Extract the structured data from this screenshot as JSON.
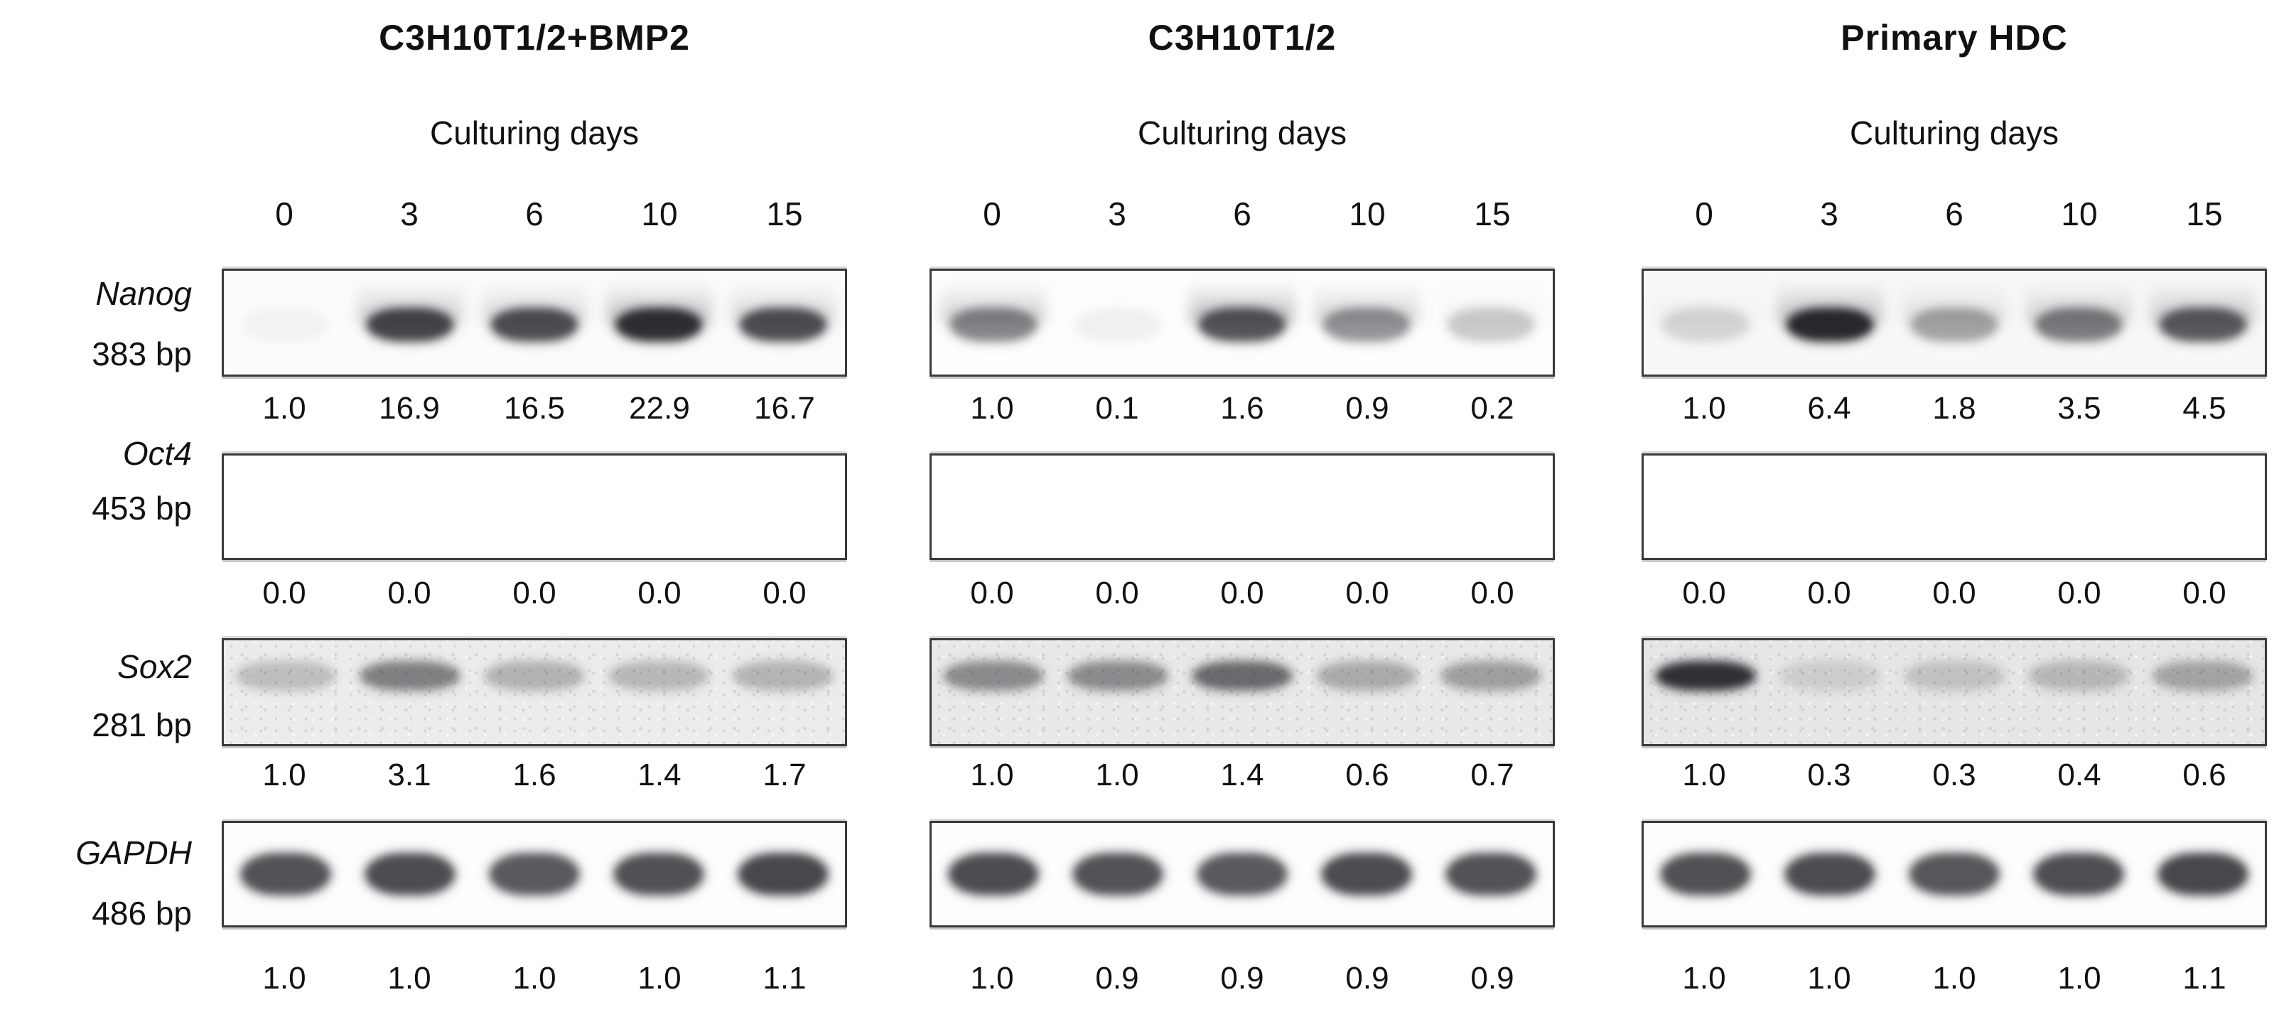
{
  "figure": {
    "culturing_days_label": "Culturing days",
    "lanes": [
      "0",
      "3",
      "6",
      "10",
      "15"
    ],
    "gene_rows": [
      {
        "gene": "Nanog",
        "size": "383 bp"
      },
      {
        "gene": "Oct4",
        "size": "453 bp"
      },
      {
        "gene": "Sox2",
        "size": "281 bp"
      },
      {
        "gene": "GAPDH",
        "size": "486 bp"
      }
    ],
    "band_color": "#1c1c22",
    "panels": [
      {
        "title": "C3H10T1/2+BMP2",
        "rows": [
          {
            "gene": "Nanog",
            "values": [
              "1.0",
              "16.9",
              "16.5",
              "22.9",
              "16.7"
            ],
            "bands": [
              0.04,
              0.82,
              0.78,
              0.92,
              0.78
            ],
            "smears": [
              0,
              0.28,
              0.22,
              0.35,
              0.22
            ],
            "texture": "plain",
            "tone": "#fbfbfb"
          },
          {
            "gene": "Oct4",
            "values": [
              "0.0",
              "0.0",
              "0.0",
              "0.0",
              "0.0"
            ],
            "bands": [
              0,
              0,
              0,
              0,
              0
            ],
            "smears": [
              0,
              0,
              0,
              0,
              0
            ],
            "texture": "plain",
            "tone": "#ffffff"
          },
          {
            "gene": "Sox2",
            "values": [
              "1.0",
              "3.1",
              "1.6",
              "1.4",
              "1.7"
            ],
            "bands": [
              0.22,
              0.52,
              0.28,
              0.25,
              0.27
            ],
            "smears": [
              0,
              0,
              0,
              0,
              0
            ],
            "texture": "speckled",
            "tone": "#ececec"
          },
          {
            "gene": "GAPDH",
            "values": [
              "1.0",
              "1.0",
              "1.0",
              "1.0",
              "1.1"
            ],
            "bands": [
              0.76,
              0.79,
              0.73,
              0.77,
              0.81
            ],
            "smears": [
              0,
              0,
              0,
              0,
              0
            ],
            "texture": "plain",
            "tone": "#fdfdfd"
          }
        ]
      },
      {
        "title": "C3H10T1/2",
        "rows": [
          {
            "gene": "Nanog",
            "values": [
              "1.0",
              "0.1",
              "1.6",
              "0.9",
              "0.2"
            ],
            "bands": [
              0.52,
              0.06,
              0.74,
              0.46,
              0.22
            ],
            "smears": [
              0.28,
              0,
              0.4,
              0.25,
              0.05
            ],
            "texture": "plain",
            "tone": "#fdfdfd"
          },
          {
            "gene": "Oct4",
            "values": [
              "0.0",
              "0.0",
              "0.0",
              "0.0",
              "0.0"
            ],
            "bands": [
              0,
              0,
              0,
              0,
              0
            ],
            "smears": [
              0,
              0,
              0,
              0,
              0
            ],
            "texture": "plain",
            "tone": "#ffffff"
          },
          {
            "gene": "Sox2",
            "values": [
              "1.0",
              "1.0",
              "1.4",
              "0.6",
              "0.7"
            ],
            "bands": [
              0.46,
              0.46,
              0.62,
              0.3,
              0.36
            ],
            "smears": [
              0,
              0,
              0,
              0,
              0
            ],
            "texture": "speckled",
            "tone": "#e9e9e9"
          },
          {
            "gene": "GAPDH",
            "values": [
              "1.0",
              "0.9",
              "0.9",
              "0.9",
              "0.9"
            ],
            "bands": [
              0.79,
              0.76,
              0.73,
              0.79,
              0.76
            ],
            "smears": [
              0,
              0,
              0,
              0,
              0
            ],
            "texture": "plain",
            "tone": "#fdfdfd"
          }
        ]
      },
      {
        "title": "Primary HDC",
        "rows": [
          {
            "gene": "Nanog",
            "values": [
              "1.0",
              "6.4",
              "1.8",
              "3.5",
              "4.5"
            ],
            "bands": [
              0.16,
              0.95,
              0.38,
              0.56,
              0.72
            ],
            "smears": [
              0.05,
              0.35,
              0.15,
              0.25,
              0.3
            ],
            "texture": "plain",
            "tone": "#f8f8f8"
          },
          {
            "gene": "Oct4",
            "values": [
              "0.0",
              "0.0",
              "0.0",
              "0.0",
              "0.0"
            ],
            "bands": [
              0,
              0,
              0,
              0,
              0
            ],
            "smears": [
              0,
              0,
              0,
              0,
              0
            ],
            "texture": "plain",
            "tone": "#ffffff"
          },
          {
            "gene": "Sox2",
            "values": [
              "1.0",
              "0.3",
              "0.3",
              "0.4",
              "0.6"
            ],
            "bands": [
              0.9,
              0.13,
              0.18,
              0.23,
              0.33
            ],
            "smears": [
              0,
              0,
              0,
              0,
              0
            ],
            "texture": "speckled",
            "tone": "#e6e6e6"
          },
          {
            "gene": "GAPDH",
            "values": [
              "1.0",
              "1.0",
              "1.0",
              "1.0",
              "1.1"
            ],
            "bands": [
              0.77,
              0.79,
              0.74,
              0.78,
              0.81
            ],
            "smears": [
              0,
              0,
              0,
              0,
              0
            ],
            "texture": "plain",
            "tone": "#fdfdfd"
          }
        ]
      }
    ]
  }
}
